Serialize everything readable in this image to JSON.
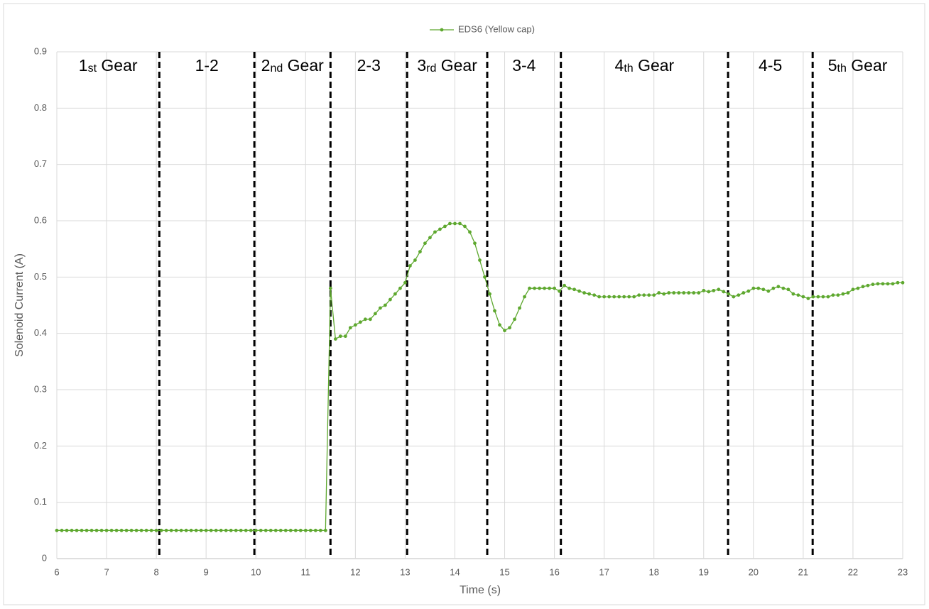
{
  "chart_data": {
    "type": "line",
    "x_label": "Time (s)",
    "y_label": "Solenoid Current (A)",
    "xlim": [
      6,
      23
    ],
    "xticks": [
      6,
      7,
      8,
      9,
      10,
      11,
      12,
      13,
      14,
      15,
      16,
      17,
      18,
      19,
      20,
      21,
      22,
      23
    ],
    "ylim": [
      0,
      0.9
    ],
    "yticks": [
      0,
      0.1,
      0.2,
      0.3,
      0.4,
      0.5,
      0.6,
      0.7,
      0.8,
      0.9
    ],
    "grid": true,
    "legend": "top",
    "dividers": [
      8.06,
      9.97,
      11.5,
      13.04,
      14.65,
      16.13,
      19.49,
      21.19
    ],
    "regions": [
      "1st Gear",
      "1-2",
      "2nd Gear",
      "2-3",
      "3rd Gear",
      "3-4",
      "4th Gear",
      "4-5",
      "5th Gear"
    ],
    "x": [
      6.0,
      6.1,
      6.2,
      6.3,
      6.4,
      6.5,
      6.6,
      6.7,
      6.8,
      6.9,
      7.0,
      7.1,
      7.2,
      7.3,
      7.4,
      7.5,
      7.6,
      7.7,
      7.8,
      7.9,
      8.0,
      8.1,
      8.2,
      8.3,
      8.4,
      8.5,
      8.6,
      8.7,
      8.8,
      8.9,
      9.0,
      9.1,
      9.2,
      9.3,
      9.4,
      9.5,
      9.6,
      9.7,
      9.8,
      9.9,
      10.0,
      10.1,
      10.2,
      10.3,
      10.4,
      10.5,
      10.6,
      10.7,
      10.8,
      10.9,
      11.0,
      11.1,
      11.2,
      11.3,
      11.4,
      11.5,
      11.6,
      11.7,
      11.8,
      11.9,
      12.0,
      12.1,
      12.2,
      12.3,
      12.4,
      12.5,
      12.6,
      12.7,
      12.8,
      12.9,
      13.0,
      13.1,
      13.2,
      13.3,
      13.4,
      13.5,
      13.6,
      13.7,
      13.8,
      13.9,
      14.0,
      14.1,
      14.2,
      14.3,
      14.4,
      14.5,
      14.6,
      14.7,
      14.8,
      14.9,
      15.0,
      15.1,
      15.2,
      15.3,
      15.4,
      15.5,
      15.6,
      15.7,
      15.8,
      15.9,
      16.0,
      16.1,
      16.2,
      16.3,
      16.4,
      16.5,
      16.6,
      16.7,
      16.8,
      16.9,
      17.0,
      17.1,
      17.2,
      17.3,
      17.4,
      17.5,
      17.6,
      17.7,
      17.8,
      17.9,
      18.0,
      18.1,
      18.2,
      18.3,
      18.4,
      18.5,
      18.6,
      18.7,
      18.8,
      18.9,
      19.0,
      19.1,
      19.2,
      19.3,
      19.4,
      19.5,
      19.6,
      19.7,
      19.8,
      19.9,
      20.0,
      20.1,
      20.2,
      20.3,
      20.4,
      20.5,
      20.6,
      20.7,
      20.8,
      20.9,
      21.0,
      21.1,
      21.2,
      21.3,
      21.4,
      21.5,
      21.6,
      21.7,
      21.8,
      21.9,
      22.0,
      22.1,
      22.2,
      22.3,
      22.4,
      22.5,
      22.6,
      22.7,
      22.8,
      22.9,
      23.0
    ],
    "series": [
      {
        "name": "EDS6 (Yellow cap)",
        "color": "#5ea82f",
        "values": [
          0.05,
          0.05,
          0.05,
          0.05,
          0.05,
          0.05,
          0.05,
          0.05,
          0.05,
          0.05,
          0.05,
          0.05,
          0.05,
          0.05,
          0.05,
          0.05,
          0.05,
          0.05,
          0.05,
          0.05,
          0.05,
          0.05,
          0.05,
          0.05,
          0.05,
          0.05,
          0.05,
          0.05,
          0.05,
          0.05,
          0.05,
          0.05,
          0.05,
          0.05,
          0.05,
          0.05,
          0.05,
          0.05,
          0.05,
          0.05,
          0.05,
          0.05,
          0.05,
          0.05,
          0.05,
          0.05,
          0.05,
          0.05,
          0.05,
          0.05,
          0.05,
          0.05,
          0.05,
          0.05,
          0.05,
          0.48,
          0.39,
          0.395,
          0.395,
          0.41,
          0.415,
          0.42,
          0.425,
          0.425,
          0.435,
          0.445,
          0.45,
          0.46,
          0.47,
          0.48,
          0.49,
          0.52,
          0.53,
          0.545,
          0.56,
          0.57,
          0.58,
          0.585,
          0.59,
          0.595,
          0.595,
          0.595,
          0.59,
          0.58,
          0.56,
          0.53,
          0.5,
          0.47,
          0.44,
          0.415,
          0.405,
          0.41,
          0.425,
          0.445,
          0.465,
          0.48,
          0.48,
          0.48,
          0.48,
          0.48,
          0.48,
          0.475,
          0.485,
          0.48,
          0.478,
          0.475,
          0.472,
          0.47,
          0.468,
          0.465,
          0.465,
          0.465,
          0.465,
          0.465,
          0.465,
          0.465,
          0.465,
          0.468,
          0.468,
          0.468,
          0.468,
          0.472,
          0.47,
          0.472,
          0.472,
          0.472,
          0.472,
          0.472,
          0.472,
          0.472,
          0.476,
          0.474,
          0.476,
          0.478,
          0.474,
          0.47,
          0.465,
          0.468,
          0.472,
          0.475,
          0.48,
          0.48,
          0.478,
          0.475,
          0.48,
          0.483,
          0.48,
          0.478,
          0.47,
          0.468,
          0.465,
          0.462,
          0.465,
          0.465,
          0.465,
          0.465,
          0.468,
          0.468,
          0.47,
          0.472,
          0.478,
          0.48,
          0.483,
          0.485,
          0.487,
          0.488,
          0.488,
          0.488,
          0.488,
          0.49,
          0.49
        ]
      }
    ]
  }
}
